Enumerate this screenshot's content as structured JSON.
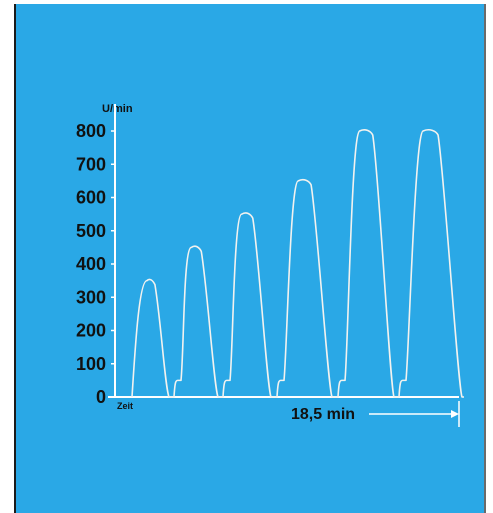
{
  "chart_data": {
    "type": "line",
    "y_unit_label": "U/min",
    "x_start_label": "Zeit",
    "duration_label": "18,5 min",
    "y_ticks": [
      "0",
      "100",
      "200",
      "300",
      "400",
      "500",
      "600",
      "700",
      "800"
    ],
    "ylim": [
      0,
      800
    ],
    "grid": false,
    "series": [
      {
        "peaks": [
          350,
          450,
          550,
          650,
          800,
          800
        ],
        "plateau": 50
      }
    ]
  },
  "colors": {
    "background": "#2aa8e6",
    "trace": "#f2f2ef",
    "axis": "#ffffff",
    "text": "#111111"
  }
}
